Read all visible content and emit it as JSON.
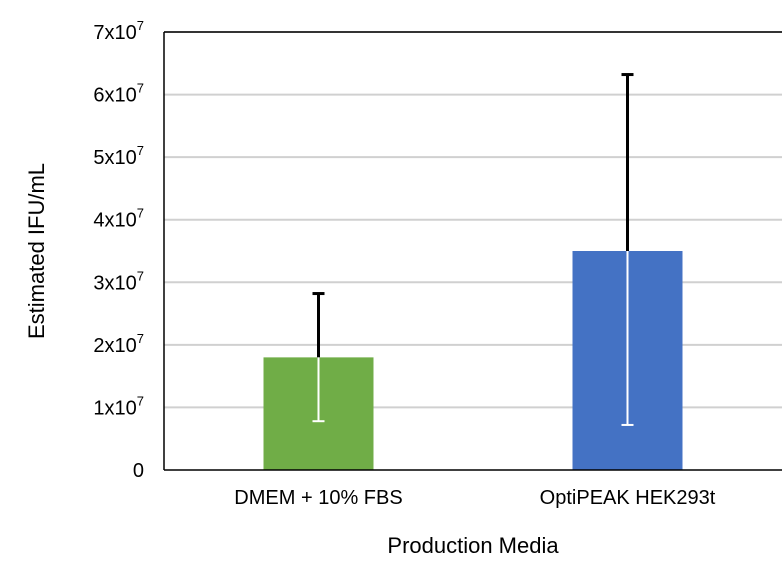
{
  "chart_data": {
    "type": "bar",
    "title": "",
    "xlabel": "Production Media",
    "ylabel": "Estimated IFU/mL",
    "ylim": [
      0,
      70000000
    ],
    "y_ticks": [
      {
        "value": 0,
        "label": "0"
      },
      {
        "value": 10000000,
        "label": "1x10",
        "exp": "7"
      },
      {
        "value": 20000000,
        "label": "2x10",
        "exp": "7"
      },
      {
        "value": 30000000,
        "label": "3x10",
        "exp": "7"
      },
      {
        "value": 40000000,
        "label": "4x10",
        "exp": "7"
      },
      {
        "value": 50000000,
        "label": "5x10",
        "exp": "7"
      },
      {
        "value": 60000000,
        "label": "6x10",
        "exp": "7"
      },
      {
        "value": 70000000,
        "label": "7x10",
        "exp": "7"
      }
    ],
    "grid": true,
    "legend": "none",
    "categories": [
      "DMEM + 10% FBS",
      "OptiPEAK HEK293t"
    ],
    "values": [
      18000000,
      35000000
    ],
    "error_low": [
      7800000,
      7200000
    ],
    "error_high": [
      28200000,
      63200000
    ],
    "colors": [
      "#70ad47",
      "#4472c4"
    ]
  }
}
